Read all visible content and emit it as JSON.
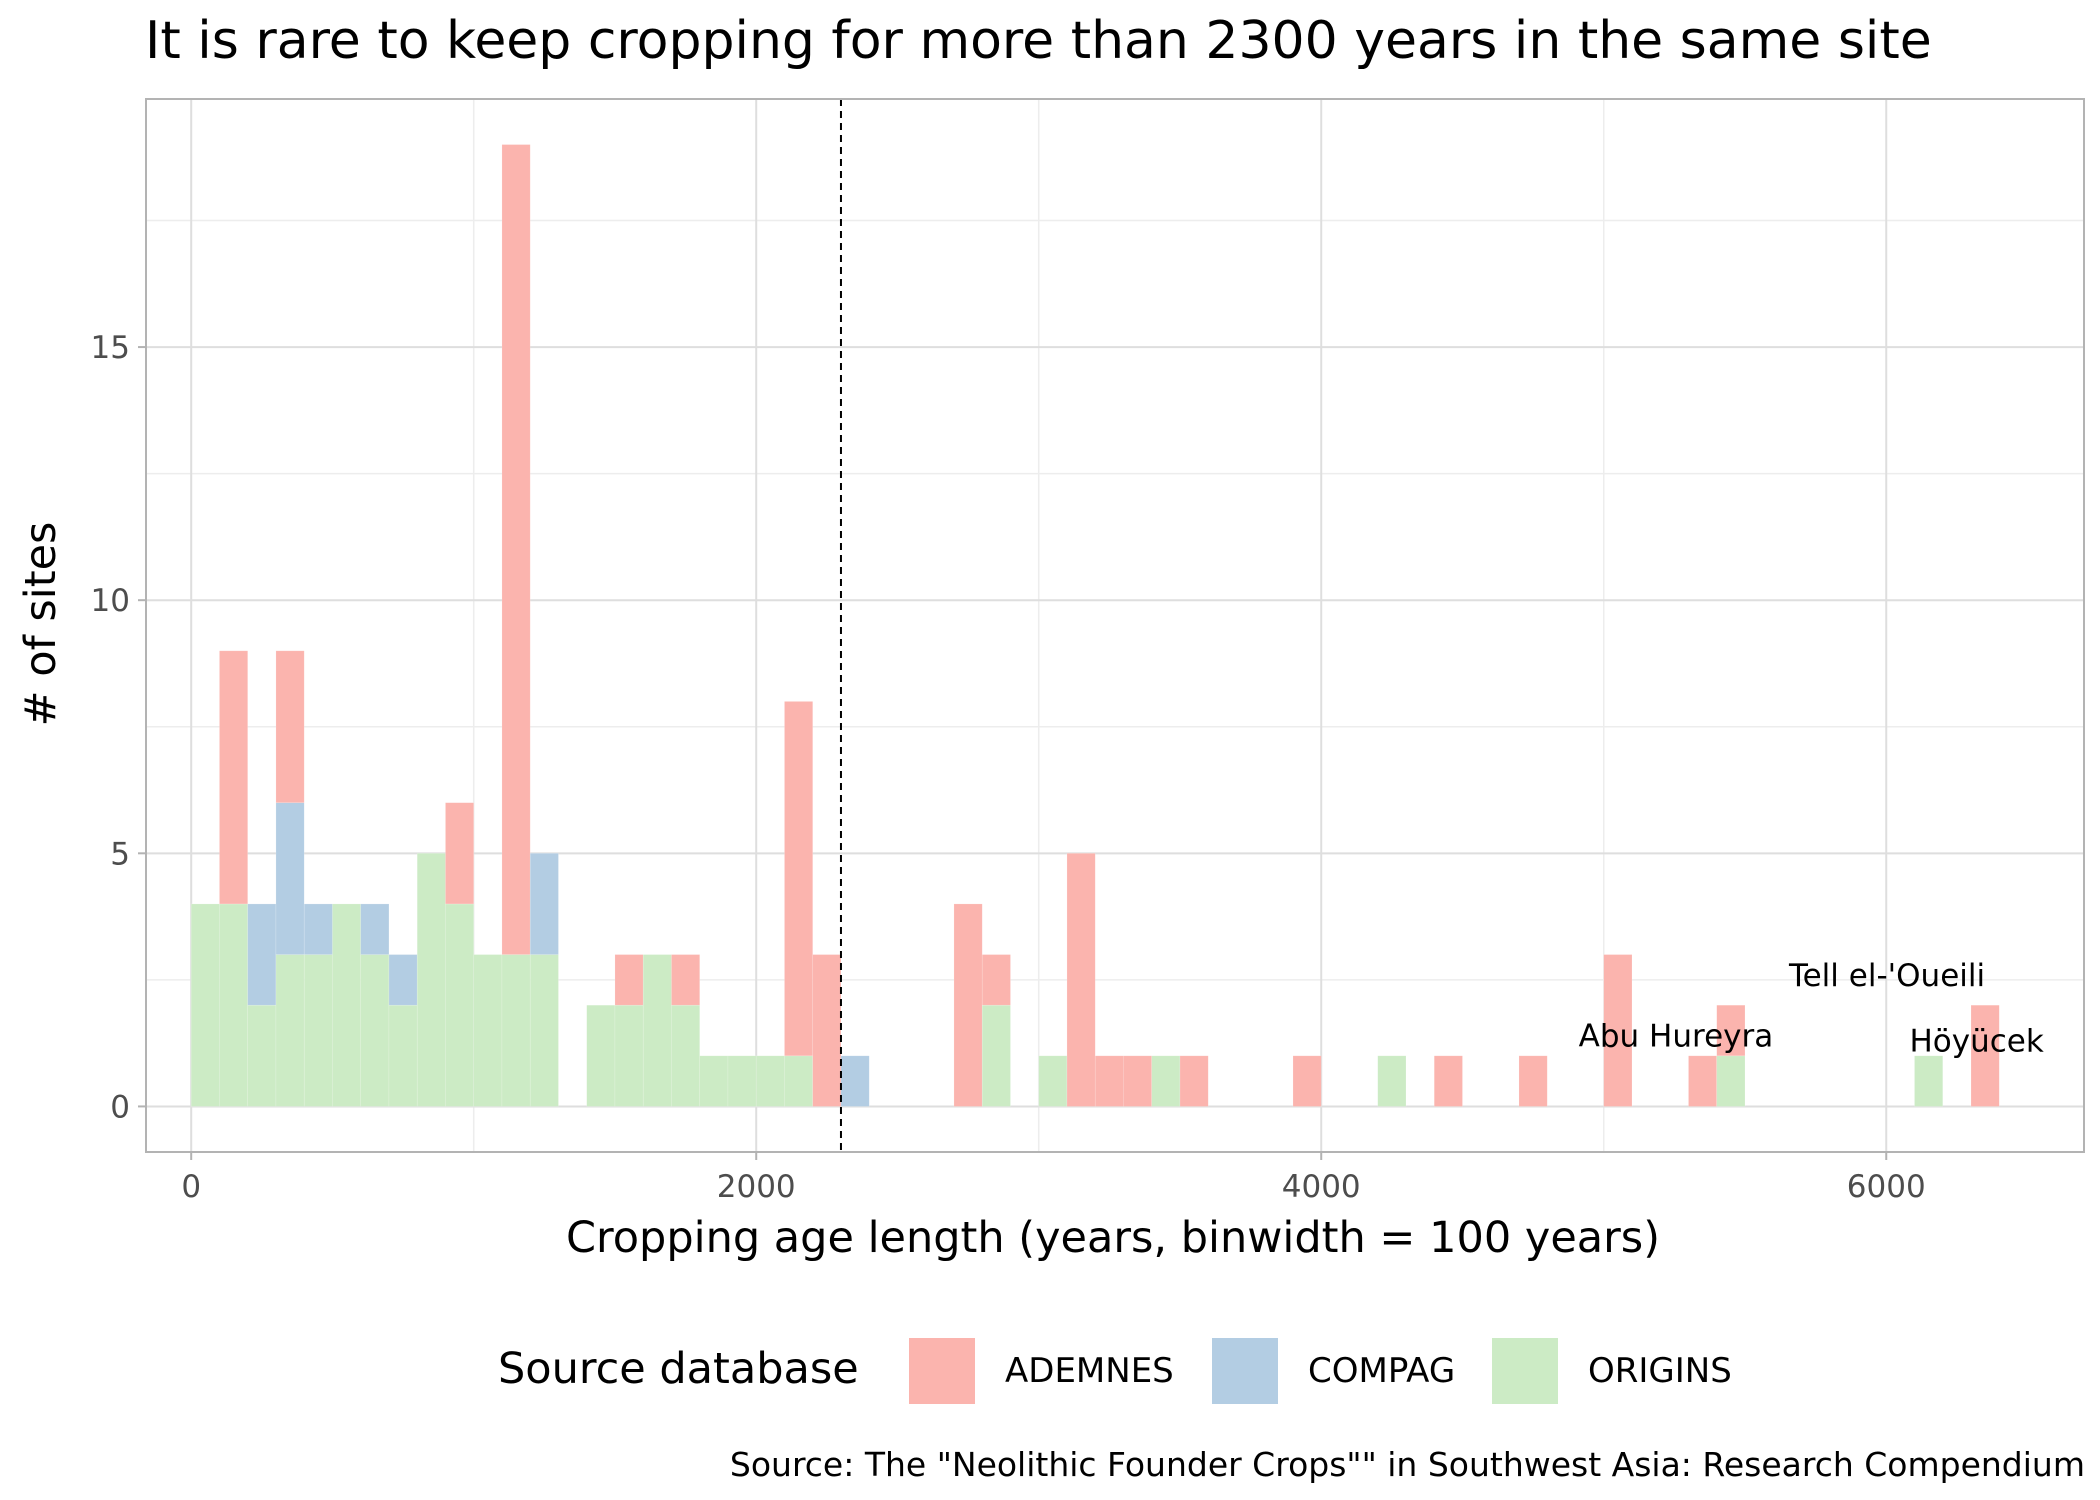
{
  "chart_data": {
    "type": "bar",
    "stacked": true,
    "title": "It is rare to keep cropping for more than 2300 years in the same site",
    "xlabel": "Cropping age length (years, binwidth = 100 years)",
    "ylabel": "# of sites",
    "caption": "Source: The \"Neolithic Founder Crops\"\" in Southwest Asia: Research Compendium",
    "binwidth": 100,
    "xlim": [
      -160,
      6700
    ],
    "ylim": [
      -0.9,
      19.9
    ],
    "x_ticks": [
      0,
      2000,
      4000,
      6000
    ],
    "x_tick_labels": [
      "0",
      "2000",
      "4000",
      "6000"
    ],
    "y_ticks": [
      0,
      5,
      10,
      15
    ],
    "y_tick_labels": [
      "0",
      "5",
      "10",
      "15"
    ],
    "grid": true,
    "legend": {
      "title": "Source database",
      "position": "bottom",
      "entries": [
        "ADEMNES",
        "COMPAG",
        "ORIGINS"
      ]
    },
    "colors": {
      "ADEMNES": "#fbb4ae",
      "COMPAG": "#b3cde3",
      "ORIGINS": "#ccebc5"
    },
    "reference_line": {
      "x": 2300,
      "style": "dashed"
    },
    "x": [
      0,
      100,
      200,
      300,
      400,
      500,
      600,
      700,
      800,
      900,
      1000,
      1100,
      1200,
      1400,
      1500,
      1600,
      1700,
      1800,
      1900,
      2000,
      2100,
      2200,
      2300,
      2700,
      2800,
      3000,
      3100,
      3200,
      3300,
      3400,
      3500,
      3900,
      4200,
      4400,
      4700,
      5000,
      5300,
      5400,
      6100,
      6300
    ],
    "series": [
      {
        "name": "ORIGINS",
        "values": [
          4,
          4,
          2,
          3,
          3,
          4,
          3,
          2,
          5,
          4,
          3,
          3,
          3,
          2,
          2,
          3,
          2,
          1,
          1,
          1,
          1,
          0,
          0,
          0,
          2,
          1,
          0,
          0,
          0,
          1,
          0,
          0,
          1,
          0,
          0,
          0,
          0,
          1,
          1,
          0
        ]
      },
      {
        "name": "COMPAG",
        "values": [
          0,
          0,
          2,
          3,
          1,
          0,
          1,
          1,
          0,
          0,
          0,
          0,
          2,
          0,
          0,
          0,
          0,
          0,
          0,
          0,
          0,
          0,
          1,
          0,
          0,
          0,
          0,
          0,
          0,
          0,
          0,
          0,
          0,
          0,
          0,
          0,
          0,
          0,
          0,
          0
        ]
      },
      {
        "name": "ADEMNES",
        "values": [
          0,
          5,
          0,
          3,
          0,
          0,
          0,
          0,
          0,
          2,
          0,
          16,
          0,
          0,
          1,
          0,
          1,
          0,
          0,
          0,
          7,
          3,
          0,
          4,
          1,
          0,
          5,
          1,
          1,
          0,
          1,
          1,
          0,
          1,
          1,
          3,
          1,
          1,
          0,
          2
        ]
      }
    ],
    "annotations": [
      {
        "text": "Tell el-'Oueili",
        "x": 6350,
        "y": 2.6,
        "anchor": "end"
      },
      {
        "text": "Abu Hureyra",
        "x": 5600,
        "y": 1.4,
        "anchor": "end"
      },
      {
        "text": "Höyücek",
        "x": 6320,
        "y": 1.3,
        "anchor": "middle"
      }
    ]
  }
}
